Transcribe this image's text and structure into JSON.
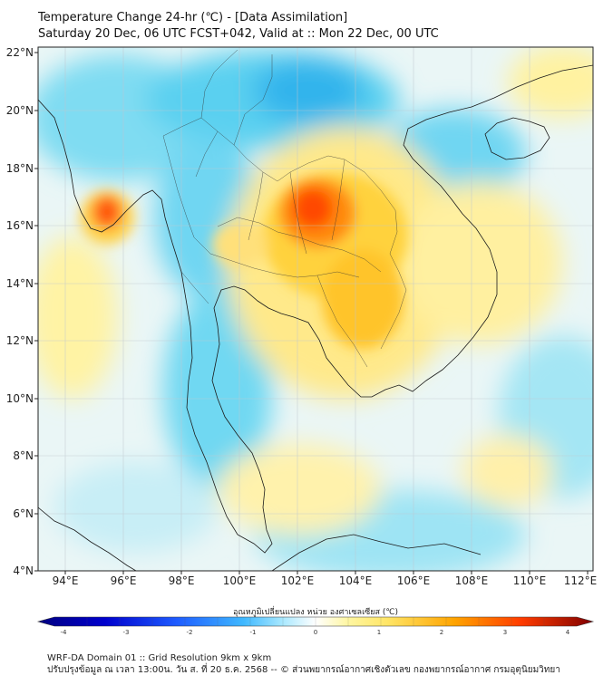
{
  "header": {
    "title_line1": "Temperature Change 24-hr (℃) - [Data Assimilation]",
    "title_line2": "Saturday 20 Dec, 06 UTC FCST+042, Valid at :: Mon 22 Dec, 00 UTC"
  },
  "map": {
    "lon_labels": [
      "94°E",
      "96°E",
      "98°E",
      "100°E",
      "102°E",
      "104°E",
      "106°E",
      "108°E",
      "110°E",
      "112°E"
    ],
    "lat_labels": [
      "22°N",
      "20°N",
      "18°N",
      "16°N",
      "14°N",
      "12°N",
      "10°N",
      "8°N",
      "6°N",
      "4°N"
    ],
    "hotspots": [
      {
        "name": "northeast-thailand-laos",
        "lon": 102.6,
        "lat": 16.3,
        "value": 3.0
      },
      {
        "name": "central-thailand",
        "lon": 100.5,
        "lat": 15.5,
        "value": 1.5
      },
      {
        "name": "cambodia",
        "lon": 104.5,
        "lat": 13.0,
        "value": 2.0
      },
      {
        "name": "myanmar-coast",
        "lon": 95.4,
        "lat": 16.6,
        "value": 3.2
      }
    ],
    "coldspots": [
      {
        "name": "north-myanmar-laos",
        "lon": 102,
        "lat": 20.5,
        "value": -1.8
      },
      {
        "name": "andaman-sea",
        "lon": 98.5,
        "lat": 12,
        "value": -1.2
      }
    ]
  },
  "colorbar": {
    "label": "อุณหภูมิเปลี่ยนแปลง หน่วย องศาเซลเซียส (℃)",
    "ticks": [
      "-4",
      "-3",
      "-2",
      "-1",
      "0",
      "1",
      "2",
      "3",
      "4"
    ],
    "colors": [
      "#000080",
      "#0000cd",
      "#1e3cff",
      "#2f7cff",
      "#3fb8ff",
      "#6fdcff",
      "#d6f4ff",
      "#ffffff",
      "#fff8b0",
      "#ffe566",
      "#ffc21e",
      "#ff8a00",
      "#ff3c00",
      "#d40000",
      "#800000"
    ]
  },
  "footer": {
    "line1": "WRF-DA Domain 01 :: Grid Resolution 9km x 9km",
    "line2": "ปรับปรุงข้อมูล ณ เวลา 13:00น. วัน ส. ที่ 20 ธ.ค. 2568 -- © ส่วนพยากรณ์อากาศเชิงตัวเลข กองพยากรณ์อากาศ กรมอุตุนิยมวิทยา"
  }
}
